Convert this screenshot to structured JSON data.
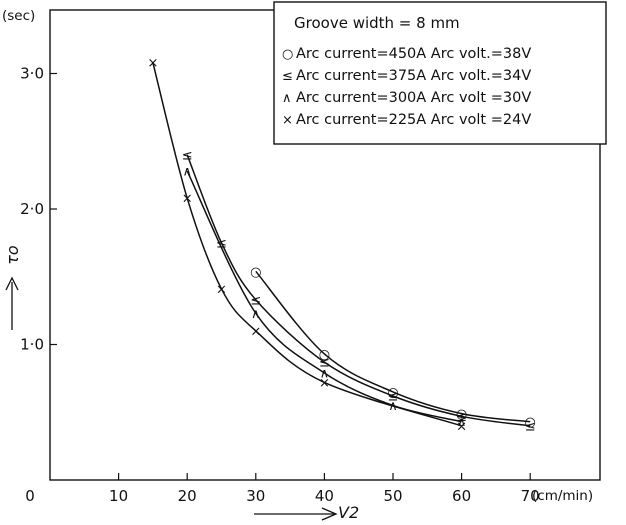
{
  "chart_data": {
    "type": "line",
    "title": "",
    "xlabel": "V2",
    "ylabel": "τo",
    "x_unit": "(cm/min)",
    "y_unit": "(sec)",
    "xlim": [
      0,
      75
    ],
    "ylim": [
      0,
      3.5
    ],
    "x_ticks": [
      "0",
      "10",
      "20",
      "30",
      "40",
      "50",
      "60",
      "70"
    ],
    "y_ticks": [
      "1·0",
      "2·0",
      "3·0"
    ],
    "grid": false,
    "legend_title": "Groove width = 8 mm",
    "legend_position": "top-right",
    "series": [
      {
        "name": "Arc current=450A Arc volt.=38V",
        "marker": "o",
        "x": [
          30,
          40,
          50,
          60,
          70
        ],
        "y": [
          1.54,
          0.93,
          0.65,
          0.49,
          0.43
        ]
      },
      {
        "name": "Arc current=375A Arc volt.=34V",
        "marker": "≤",
        "x": [
          20,
          25,
          30,
          40,
          50,
          60,
          70
        ],
        "y": [
          2.4,
          1.75,
          1.33,
          0.87,
          0.62,
          0.47,
          0.4
        ]
      },
      {
        "name": "Arc current=300A Arc volt =30V",
        "marker": "∧",
        "x": [
          20,
          30,
          40,
          50,
          60
        ],
        "y": [
          2.28,
          1.23,
          0.79,
          0.55,
          0.43
        ]
      },
      {
        "name": "Arc current=225A Arc volt =24V",
        "marker": "×",
        "x": [
          15,
          20,
          25,
          30,
          40,
          60
        ],
        "y": [
          3.08,
          2.08,
          1.41,
          1.1,
          0.72,
          0.4
        ]
      }
    ]
  }
}
